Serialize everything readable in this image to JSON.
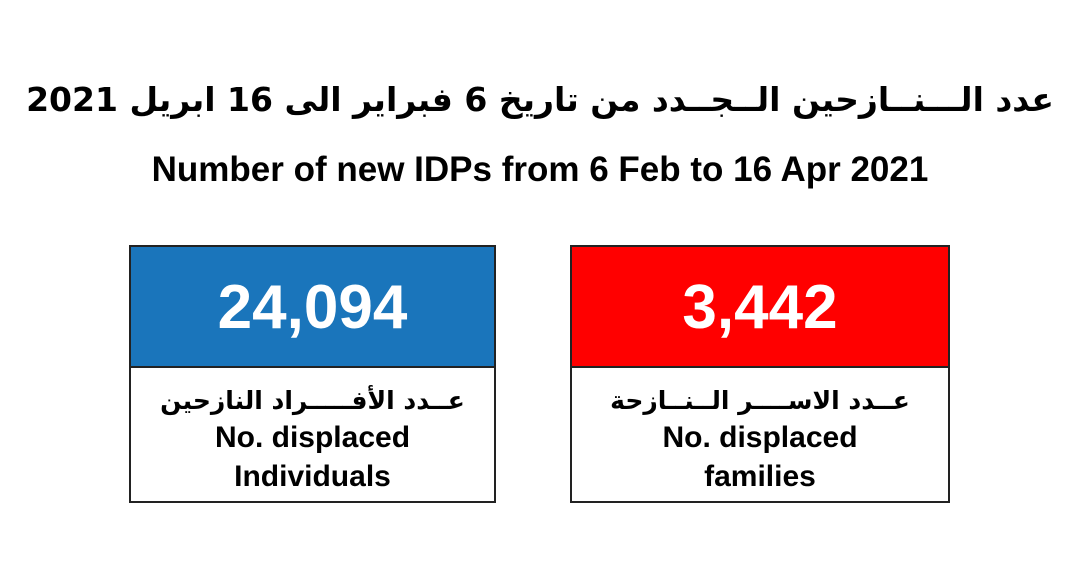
{
  "title_ar": "عدد الـــنــازحين الــجــدد من تاريخ 6 فبراير الى 16 ابريل 2021",
  "title_en": "Number of new IDPs from 6 Feb to 16 Apr 2021",
  "cards": [
    {
      "value": "24,094",
      "color": "#1a75bb",
      "label_ar": "عــدد الأفـــــراد النازحين",
      "label_en_line1": "No. displaced",
      "label_en_line2": "Individuals"
    },
    {
      "value": "3,442",
      "color": "#ff0000",
      "label_ar": "عــدد الاســــر الــنــازحة",
      "label_en_line1": "No. displaced",
      "label_en_line2": "families"
    }
  ]
}
